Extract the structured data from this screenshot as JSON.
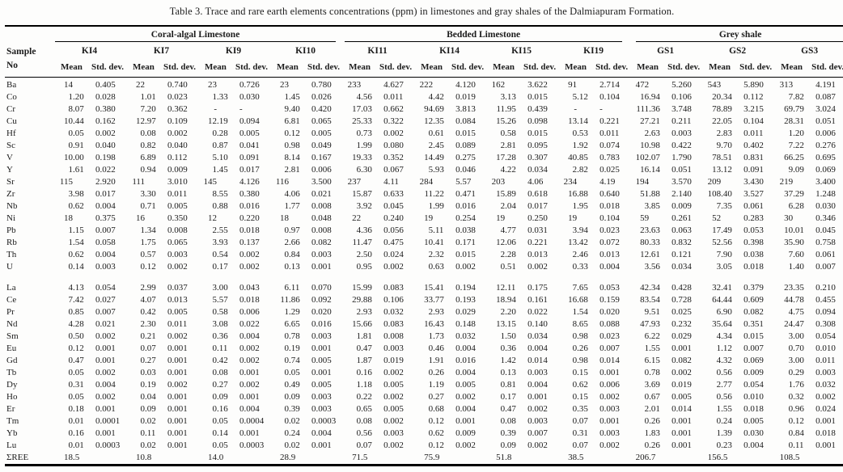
{
  "title": "Table 3. Trace and rare earth elements concentrations (ppm) in limestones and gray shales of the Dalmiapuram Formation.",
  "colors": {
    "background": "#fdfdfc",
    "text": "#1c1c1c",
    "rule": "#000000"
  },
  "table": {
    "sample_header": {
      "line1": "Sample",
      "line2": "No"
    },
    "groups": [
      {
        "label": "Coral-algal Limestone",
        "samples": [
          "KI4",
          "KI7",
          "KI9",
          "KI10"
        ]
      },
      {
        "label": "Bedded Limestone",
        "samples": [
          "KI11",
          "KI14",
          "KI15",
          "KI19"
        ]
      },
      {
        "label": "Grey shale",
        "samples": [
          "GS1",
          "GS2",
          "GS3"
        ]
      }
    ],
    "stat_headers": [
      "Mean",
      "Std. dev."
    ],
    "trace_rows": [
      {
        "element": "Ba",
        "values": [
          "14",
          "0.405",
          "22",
          "0.740",
          "23",
          "0.726",
          "23",
          "0.780",
          "233",
          "4.627",
          "222",
          "4.120",
          "162",
          "3.622",
          "91",
          "2.714",
          "472",
          "5.260",
          "543",
          "5.890",
          "313",
          "4.191"
        ]
      },
      {
        "element": "Co",
        "values": [
          "1.20",
          "0.028",
          "1.01",
          "0.023",
          "1.33",
          "0.030",
          "1.45",
          "0.026",
          "4.56",
          "0.011",
          "4.42",
          "0.019",
          "3.13",
          "0.015",
          "5.12",
          "0.104",
          "16.94",
          "0.106",
          "20.34",
          "0.112",
          "7.82",
          "0.087"
        ]
      },
      {
        "element": "Cr",
        "values": [
          "8.07",
          "0.380",
          "7.20",
          "0.362",
          "-",
          "-",
          "9.40",
          "0.420",
          "17.03",
          "0.662",
          "94.69",
          "3.813",
          "11.95",
          "0.439",
          "-",
          "-",
          "111.36",
          "3.748",
          "78.89",
          "3.215",
          "69.79",
          "3.024"
        ]
      },
      {
        "element": "Cu",
        "values": [
          "10.44",
          "0.162",
          "12.97",
          "0.109",
          "12.19",
          "0.094",
          "6.81",
          "0.065",
          "25.33",
          "0.322",
          "12.35",
          "0.084",
          "15.26",
          "0.098",
          "13.14",
          "0.221",
          "27.21",
          "0.211",
          "22.05",
          "0.104",
          "28.31",
          "0.051"
        ]
      },
      {
        "element": "Hf",
        "values": [
          "0.05",
          "0.002",
          "0.08",
          "0.002",
          "0.28",
          "0.005",
          "0.12",
          "0.005",
          "0.73",
          "0.002",
          "0.61",
          "0.015",
          "0.58",
          "0.015",
          "0.53",
          "0.011",
          "2.63",
          "0.003",
          "2.83",
          "0.011",
          "1.20",
          "0.006"
        ]
      },
      {
        "element": "Sc",
        "values": [
          "0.91",
          "0.040",
          "0.82",
          "0.040",
          "0.87",
          "0.041",
          "0.98",
          "0.049",
          "1.99",
          "0.080",
          "2.45",
          "0.089",
          "2.81",
          "0.095",
          "1.92",
          "0.074",
          "10.98",
          "0.422",
          "9.70",
          "0.402",
          "7.22",
          "0.276"
        ]
      },
      {
        "element": "V",
        "values": [
          "10.00",
          "0.198",
          "6.89",
          "0.112",
          "5.10",
          "0.091",
          "8.14",
          "0.167",
          "19.33",
          "0.352",
          "14.49",
          "0.275",
          "17.28",
          "0.307",
          "40.85",
          "0.783",
          "102.07",
          "1.790",
          "78.51",
          "0.831",
          "66.25",
          "0.695"
        ]
      },
      {
        "element": "Y",
        "values": [
          "1.61",
          "0.022",
          "0.94",
          "0.009",
          "1.45",
          "0.017",
          "2.81",
          "0.006",
          "6.30",
          "0.067",
          "5.93",
          "0.046",
          "4.22",
          "0.034",
          "2.82",
          "0.025",
          "16.14",
          "0.051",
          "13.12",
          "0.091",
          "9.09",
          "0.069"
        ]
      },
      {
        "element": "Sr",
        "values": [
          "115",
          "2.920",
          "111",
          "3.010",
          "145",
          "4.126",
          "116",
          "3.500",
          "237",
          "4.11",
          "284",
          "5.57",
          "203",
          "4.06",
          "234",
          "4.19",
          "194",
          "3.570",
          "209",
          "3.430",
          "219",
          "3.400"
        ]
      },
      {
        "element": "Zr",
        "values": [
          "3.98",
          "0.017",
          "3.30",
          "0.011",
          "8.55",
          "0.380",
          "4.06",
          "0.021",
          "15.87",
          "0.633",
          "11.22",
          "0.471",
          "15.89",
          "0.618",
          "16.88",
          "0.640",
          "51.88",
          "2.140",
          "108.40",
          "3.527",
          "37.29",
          "1.248"
        ]
      },
      {
        "element": "Nb",
        "values": [
          "0.62",
          "0.004",
          "0.71",
          "0.005",
          "0.88",
          "0.016",
          "1.77",
          "0.008",
          "3.92",
          "0.045",
          "1.99",
          "0.016",
          "2.04",
          "0.017",
          "1.95",
          "0.018",
          "3.85",
          "0.009",
          "7.35",
          "0.061",
          "6.28",
          "0.030"
        ]
      },
      {
        "element": "Ni",
        "values": [
          "18",
          "0.375",
          "16",
          "0.350",
          "12",
          "0.220",
          "18",
          "0.048",
          "22",
          "0.240",
          "19",
          "0.254",
          "19",
          "0.250",
          "19",
          "0.104",
          "59",
          "0.261",
          "52",
          "0.283",
          "30",
          "0.346"
        ]
      },
      {
        "element": "Pb",
        "values": [
          "1.15",
          "0.007",
          "1.34",
          "0.008",
          "2.55",
          "0.018",
          "0.97",
          "0.008",
          "4.36",
          "0.056",
          "5.11",
          "0.038",
          "4.77",
          "0.031",
          "3.94",
          "0.023",
          "23.63",
          "0.063",
          "17.49",
          "0.053",
          "10.01",
          "0.045"
        ]
      },
      {
        "element": "Rb",
        "values": [
          "1.54",
          "0.058",
          "1.75",
          "0.065",
          "3.93",
          "0.137",
          "2.66",
          "0.082",
          "11.47",
          "0.475",
          "10.41",
          "0.171",
          "12.06",
          "0.221",
          "13.42",
          "0.072",
          "80.33",
          "0.832",
          "52.56",
          "0.398",
          "35.90",
          "0.758"
        ]
      },
      {
        "element": "Th",
        "values": [
          "0.62",
          "0.004",
          "0.57",
          "0.003",
          "0.54",
          "0.002",
          "0.84",
          "0.003",
          "2.50",
          "0.024",
          "2.32",
          "0.015",
          "2.28",
          "0.013",
          "2.46",
          "0.013",
          "12.61",
          "0.121",
          "7.90",
          "0.038",
          "7.60",
          "0.061"
        ]
      },
      {
        "element": "U",
        "values": [
          "0.14",
          "0.003",
          "0.12",
          "0.002",
          "0.17",
          "0.002",
          "0.13",
          "0.001",
          "0.95",
          "0.002",
          "0.63",
          "0.002",
          "0.51",
          "0.002",
          "0.33",
          "0.004",
          "3.56",
          "0.034",
          "3.05",
          "0.018",
          "1.40",
          "0.007"
        ]
      }
    ],
    "ree_rows": [
      {
        "element": "La",
        "values": [
          "4.13",
          "0.054",
          "2.99",
          "0.037",
          "3.00",
          "0.043",
          "6.11",
          "0.070",
          "15.99",
          "0.083",
          "15.41",
          "0.194",
          "12.11",
          "0.175",
          "7.65",
          "0.053",
          "42.34",
          "0.428",
          "32.41",
          "0.379",
          "23.35",
          "0.210"
        ]
      },
      {
        "element": "Ce",
        "values": [
          "7.42",
          "0.027",
          "4.07",
          "0.013",
          "5.57",
          "0.018",
          "11.86",
          "0.092",
          "29.88",
          "0.106",
          "33.77",
          "0.193",
          "18.94",
          "0.161",
          "16.68",
          "0.159",
          "83.54",
          "0.728",
          "64.44",
          "0.609",
          "44.78",
          "0.455"
        ]
      },
      {
        "element": "Pr",
        "values": [
          "0.85",
          "0.007",
          "0.42",
          "0.005",
          "0.58",
          "0.006",
          "1.29",
          "0.020",
          "2.93",
          "0.032",
          "2.93",
          "0.029",
          "2.20",
          "0.022",
          "1.54",
          "0.020",
          "9.51",
          "0.025",
          "6.90",
          "0.082",
          "4.75",
          "0.094"
        ]
      },
      {
        "element": "Nd",
        "values": [
          "4.28",
          "0.021",
          "2.30",
          "0.011",
          "3.08",
          "0.022",
          "6.65",
          "0.016",
          "15.66",
          "0.083",
          "16.43",
          "0.148",
          "13.15",
          "0.140",
          "8.65",
          "0.088",
          "47.93",
          "0.232",
          "35.64",
          "0.351",
          "24.47",
          "0.308"
        ]
      },
      {
        "element": "Sm",
        "values": [
          "0.50",
          "0.002",
          "0.21",
          "0.002",
          "0.36",
          "0.004",
          "0.78",
          "0.003",
          "1.81",
          "0.008",
          "1.73",
          "0.032",
          "1.50",
          "0.034",
          "0.98",
          "0.023",
          "6.22",
          "0.029",
          "4.34",
          "0.015",
          "3.00",
          "0.054"
        ]
      },
      {
        "element": "Eu",
        "values": [
          "0.12",
          "0.001",
          "0.07",
          "0.001",
          "0.11",
          "0.002",
          "0.19",
          "0.001",
          "0.47",
          "0.003",
          "0.46",
          "0.004",
          "0.36",
          "0.004",
          "0.26",
          "0.007",
          "1.55",
          "0.001",
          "1.12",
          "0.007",
          "0.70",
          "0.010"
        ]
      },
      {
        "element": "Gd",
        "values": [
          "0.47",
          "0.001",
          "0.27",
          "0.001",
          "0.42",
          "0.002",
          "0.74",
          "0.005",
          "1.87",
          "0.019",
          "1.91",
          "0.016",
          "1.42",
          "0.014",
          "0.98",
          "0.014",
          "6.15",
          "0.082",
          "4.32",
          "0.069",
          "3.00",
          "0.011"
        ]
      },
      {
        "element": "Tb",
        "values": [
          "0.05",
          "0.002",
          "0.03",
          "0.001",
          "0.08",
          "0.001",
          "0.05",
          "0.001",
          "0.16",
          "0.002",
          "0.26",
          "0.004",
          "0.13",
          "0.003",
          "0.15",
          "0.001",
          "0.78",
          "0.002",
          "0.56",
          "0.009",
          "0.29",
          "0.003"
        ]
      },
      {
        "element": "Dy",
        "values": [
          "0.31",
          "0.004",
          "0.19",
          "0.002",
          "0.27",
          "0.002",
          "0.49",
          "0.005",
          "1.18",
          "0.005",
          "1.19",
          "0.005",
          "0.81",
          "0.004",
          "0.62",
          "0.006",
          "3.69",
          "0.019",
          "2.77",
          "0.054",
          "1.76",
          "0.032"
        ]
      },
      {
        "element": "Ho",
        "values": [
          "0.05",
          "0.002",
          "0.04",
          "0.001",
          "0.09",
          "0.001",
          "0.09",
          "0.003",
          "0.22",
          "0.002",
          "0.27",
          "0.002",
          "0.17",
          "0.001",
          "0.15",
          "0.002",
          "0.67",
          "0.005",
          "0.56",
          "0.010",
          "0.32",
          "0.002"
        ]
      },
      {
        "element": "Er",
        "values": [
          "0.18",
          "0.001",
          "0.09",
          "0.001",
          "0.16",
          "0.004",
          "0.39",
          "0.003",
          "0.65",
          "0.005",
          "0.68",
          "0.004",
          "0.47",
          "0.002",
          "0.35",
          "0.003",
          "2.01",
          "0.014",
          "1.55",
          "0.018",
          "0.96",
          "0.024"
        ]
      },
      {
        "element": "Tm",
        "values": [
          "0.01",
          "0.0001",
          "0.02",
          "0.001",
          "0.05",
          "0.0004",
          "0.02",
          "0.0003",
          "0.08",
          "0.002",
          "0.12",
          "0.001",
          "0.08",
          "0.003",
          "0.07",
          "0.001",
          "0.26",
          "0.001",
          "0.24",
          "0.005",
          "0.12",
          "0.001"
        ]
      },
      {
        "element": "Yb",
        "values": [
          "0.16",
          "0.001",
          "0.11",
          "0.001",
          "0.14",
          "0.001",
          "0.24",
          "0.004",
          "0.56",
          "0.003",
          "0.62",
          "0.009",
          "0.39",
          "0.007",
          "0.31",
          "0.003",
          "1.83",
          "0.001",
          "1.39",
          "0.030",
          "0.84",
          "0.018"
        ]
      },
      {
        "element": "Lu",
        "values": [
          "0.01",
          "0.0003",
          "0.02",
          "0.001",
          "0.05",
          "0.0003",
          "0.02",
          "0.001",
          "0.07",
          "0.002",
          "0.12",
          "0.002",
          "0.09",
          "0.002",
          "0.07",
          "0.002",
          "0.26",
          "0.001",
          "0.23",
          "0.004",
          "0.11",
          "0.001"
        ]
      }
    ],
    "sum_row": {
      "element": "ΣREE",
      "means": [
        "18.5",
        "10.8",
        "14.0",
        "28.9",
        "71.5",
        "75.9",
        "51.8",
        "38.5",
        "206.7",
        "156.5",
        "108.5"
      ]
    }
  }
}
